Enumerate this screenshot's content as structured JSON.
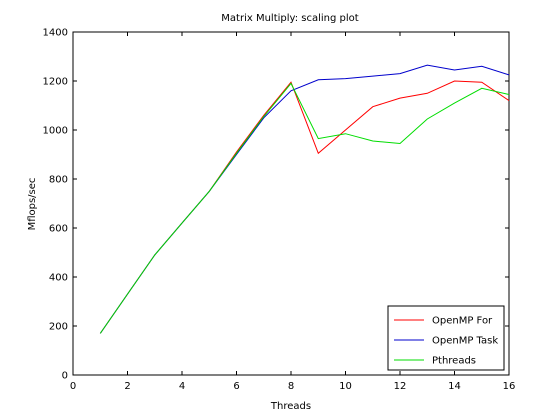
{
  "chart_data": {
    "type": "line",
    "title": "Matrix Multiply: scaling plot",
    "xlabel": "Threads",
    "ylabel": "Mflops/sec",
    "xlim": [
      0,
      16
    ],
    "ylim": [
      0,
      1400
    ],
    "xticks": [
      0,
      2,
      4,
      6,
      8,
      10,
      12,
      14,
      16
    ],
    "yticks": [
      0,
      200,
      400,
      600,
      800,
      1000,
      1200,
      1400
    ],
    "grid": false,
    "legend_position": "bottom-right",
    "series": [
      {
        "name": "OpenMP For",
        "color": "#ff0000",
        "x": [
          1,
          2,
          3,
          4,
          5,
          6,
          7,
          8,
          9,
          10,
          11,
          12,
          13,
          14,
          15,
          16
        ],
        "y": [
          170,
          330,
          490,
          620,
          750,
          910,
          1060,
          1195,
          905,
          1000,
          1095,
          1130,
          1150,
          1200,
          1195,
          1120
        ]
      },
      {
        "name": "OpenMP Task",
        "color": "#0000cc",
        "x": [
          1,
          2,
          3,
          4,
          5,
          6,
          7,
          8,
          9,
          10,
          11,
          12,
          13,
          14,
          15,
          16
        ],
        "y": [
          170,
          330,
          490,
          620,
          750,
          900,
          1050,
          1160,
          1205,
          1210,
          1220,
          1230,
          1265,
          1245,
          1260,
          1225
        ]
      },
      {
        "name": "Pthreads",
        "color": "#00dd00",
        "x": [
          1,
          2,
          3,
          4,
          5,
          6,
          7,
          8,
          9,
          10,
          11,
          12,
          13,
          14,
          15,
          16
        ],
        "y": [
          170,
          330,
          490,
          620,
          750,
          905,
          1055,
          1190,
          965,
          985,
          955,
          945,
          1045,
          1110,
          1170,
          1145
        ]
      }
    ]
  }
}
